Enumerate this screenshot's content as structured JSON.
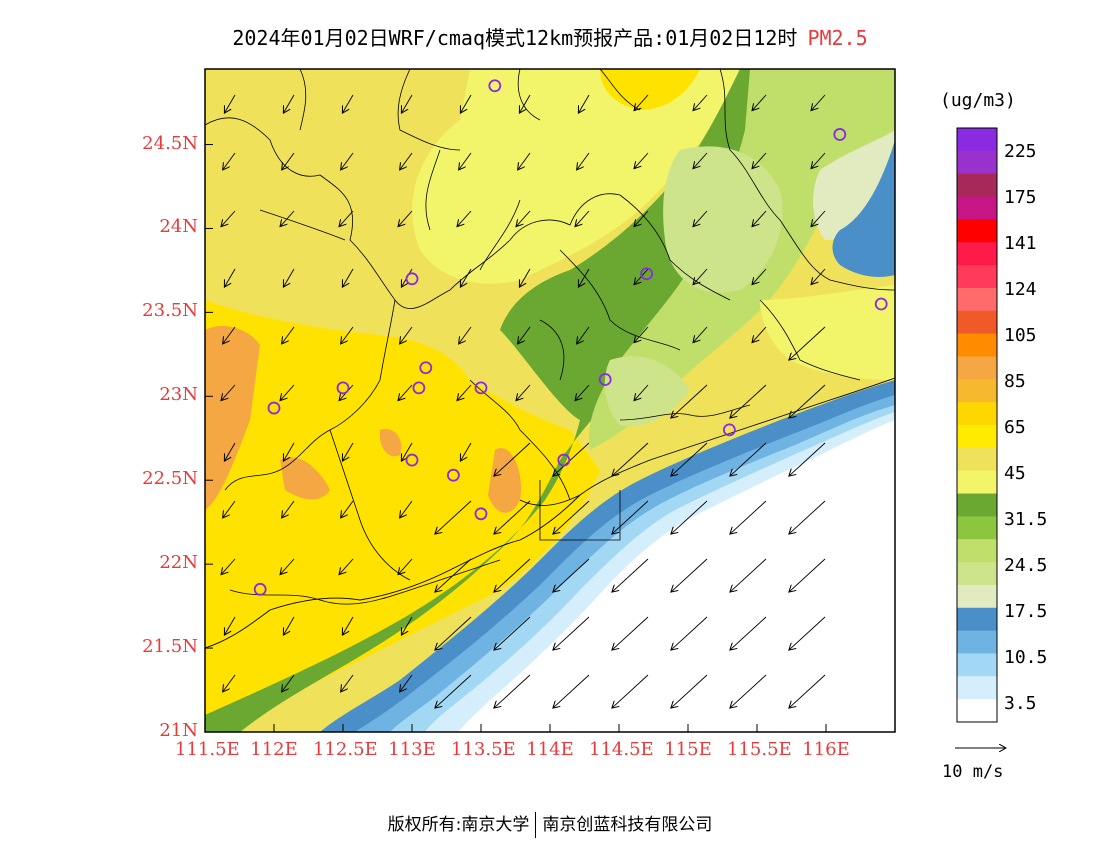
{
  "title": {
    "main": "2024年01月02日WRF/cmaq模式12km预报产品:01月02日12时",
    "variable": "PM2.5"
  },
  "colors": {
    "axis_label": "#e83a3a",
    "marker": "#8a2be2"
  },
  "map": {
    "lon_range": [
      111.5,
      116.5
    ],
    "lat_range": [
      21.0,
      24.95
    ],
    "x_ticks": [
      "111.5E",
      "112E",
      "112.5E",
      "113E",
      "113.5E",
      "114E",
      "114.5E",
      "115E",
      "115.5E",
      "116E"
    ],
    "y_ticks": [
      "21N",
      "21.5N",
      "22N",
      "22.5N",
      "23N",
      "23.5N",
      "24N",
      "24.5N"
    ]
  },
  "legend": {
    "unit": "(ug/m3)",
    "labels": [
      "225",
      "175",
      "141",
      "124",
      "105",
      "85",
      "65",
      "45",
      "31.5",
      "24.5",
      "17.5",
      "10.5",
      "3.5"
    ],
    "colors": [
      "#8a2be2",
      "#9932cc",
      "#a52a5a",
      "#c71585",
      "#ff0000",
      "#ff1a4a",
      "#ff3a5a",
      "#ff6a6a",
      "#f05a28",
      "#ff8c00",
      "#f4a742",
      "#f5b82e",
      "#ffd700",
      "#ffea00",
      "#f0e15a",
      "#f2f56a",
      "#6aa832",
      "#8cc63f",
      "#bfdf6a",
      "#cde48a",
      "#e2ebc0",
      "#4a8fc7",
      "#6fb3e3",
      "#a3d8f5",
      "#d5eefb",
      "#ffffff"
    ]
  },
  "wind_reference": {
    "label": "10 m/s"
  },
  "sites": [
    {
      "lon": 113.6,
      "lat": 24.85
    },
    {
      "lon": 116.1,
      "lat": 24.56
    },
    {
      "lon": 113.0,
      "lat": 23.7
    },
    {
      "lon": 114.7,
      "lat": 23.73
    },
    {
      "lon": 116.4,
      "lat": 23.55
    },
    {
      "lon": 112.0,
      "lat": 22.93
    },
    {
      "lon": 112.5,
      "lat": 23.05
    },
    {
      "lon": 113.05,
      "lat": 23.05
    },
    {
      "lon": 113.1,
      "lat": 23.17
    },
    {
      "lon": 113.5,
      "lat": 23.05
    },
    {
      "lon": 114.4,
      "lat": 23.1
    },
    {
      "lon": 113.0,
      "lat": 22.62
    },
    {
      "lon": 113.3,
      "lat": 22.53
    },
    {
      "lon": 114.1,
      "lat": 22.62
    },
    {
      "lon": 113.5,
      "lat": 22.3
    },
    {
      "lon": 115.3,
      "lat": 22.8
    },
    {
      "lon": 111.9,
      "lat": 21.85
    }
  ],
  "footer": {
    "copyright_left": "版权所有:南京大学",
    "copyright_right": "南京创蓝科技有限公司"
  }
}
